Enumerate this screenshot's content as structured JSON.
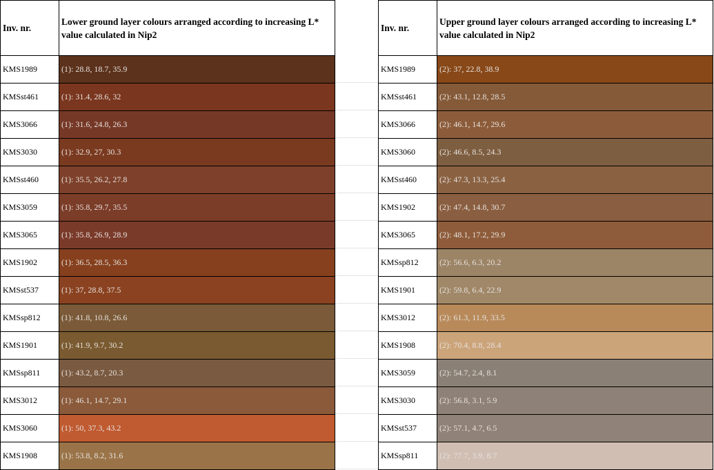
{
  "tables": [
    {
      "headers": [
        "Inv. nr.",
        "Lower ground layer colours arranged according to increasing L* value calculated in Nip2"
      ],
      "rows": [
        {
          "inv": "KMS1989",
          "label": "(1): 28.8, 18.7, 35.9",
          "color": "#5c321c"
        },
        {
          "inv": "KMSst461",
          "label": "(1): 31.4, 28.6, 32",
          "color": "#7a361e"
        },
        {
          "inv": "KMS3066",
          "label": "(1): 31.6, 24.8, 26.3",
          "color": "#763826"
        },
        {
          "inv": "KMS3030",
          "label": "(1): 32.9, 27, 30.3",
          "color": "#7a3a20"
        },
        {
          "inv": "KMSst460",
          "label": "(1): 35.5, 26.2, 27.8",
          "color": "#7e402a"
        },
        {
          "inv": "KMS3059",
          "label": "(1): 35.8, 29.7, 35.5",
          "color": "#7b3c28"
        },
        {
          "inv": "KMS3065",
          "label": "(1): 35.8, 26.9, 28.9",
          "color": "#7a3a2a"
        },
        {
          "inv": "KMS1902",
          "label": "(1): 36.5, 28.5, 36.3",
          "color": "#86401e"
        },
        {
          "inv": "KMSst537",
          "label": "(1): 37, 28.8, 37.5",
          "color": "#8a4220"
        },
        {
          "inv": "KMSsp812",
          "label": "(1): 41.8, 10.8, 26.6",
          "color": "#7a5a38"
        },
        {
          "inv": "KMS1901",
          "label": "(1): 41.9, 9.7, 30.2",
          "color": "#7a5a30"
        },
        {
          "inv": "KMSsp811",
          "label": "(1): 43.2, 8.7, 20.3",
          "color": "#7a5a40"
        },
        {
          "inv": "KMS3012",
          "label": "(1): 46.1, 14.7, 29.1",
          "color": "#8a5a3a"
        },
        {
          "inv": "KMS3060",
          "label": "(1): 50, 37.3, 43.2",
          "color": "#c05a30"
        },
        {
          "inv": "KMS1908",
          "label": "(1): 53.8, 8.2, 31.6",
          "color": "#9a7448"
        }
      ]
    },
    {
      "headers": [
        "Inv. nr.",
        "Upper ground layer colours arranged according to increasing L* value calculated in Nip2"
      ],
      "rows": [
        {
          "inv": "KMS1989",
          "label": "(2): 37, 22.8, 38.9",
          "color": "#884818"
        },
        {
          "inv": "KMSst461",
          "label": "(2): 43.1, 12.8, 28.5",
          "color": "#855a38"
        },
        {
          "inv": "KMS3066",
          "label": "(2): 46.1, 14.7, 29.6",
          "color": "#8c5c3a"
        },
        {
          "inv": "KMS3060",
          "label": "(2): 46.6, 8.5, 24.3",
          "color": "#7e5e40"
        },
        {
          "inv": "KMSst460",
          "label": "(2): 47.3, 13.3, 25.4",
          "color": "#8a6242"
        },
        {
          "inv": "KMS1902",
          "label": "(2): 47.4, 14.8, 30.7",
          "color": "#8a5e40"
        },
        {
          "inv": "KMS3065",
          "label": "(2): 48.1, 17.2, 29.9",
          "color": "#8e5c3a"
        },
        {
          "inv": "KMSsp812",
          "label": "(2): 56.6, 6.3, 20.2",
          "color": "#9c8466"
        },
        {
          "inv": "KMS1901",
          "label": "(2): 59.8, 6.4, 22.9",
          "color": "#a08868"
        },
        {
          "inv": "KMS3012",
          "label": "(2): 61.3, 11.9, 33.5",
          "color": "#b88a5a"
        },
        {
          "inv": "KMS1908",
          "label": "(2): 70.4, 8.8, 28.4",
          "color": "#cca47a"
        },
        {
          "inv": "KMS3059",
          "label": "(2): 54.7, 2.4, 8.1",
          "color": "#8a8076"
        },
        {
          "inv": "KMS3030",
          "label": "(2): 56.8, 3.1, 5.9",
          "color": "#8e8278"
        },
        {
          "inv": "KMSst537",
          "label": "(2): 57.1, 4.7, 6.5",
          "color": "#908278"
        },
        {
          "inv": "KMSsp811",
          "label": "(2): 77.7, 3.9, 8.7",
          "color": "#d0beb2"
        }
      ]
    }
  ]
}
